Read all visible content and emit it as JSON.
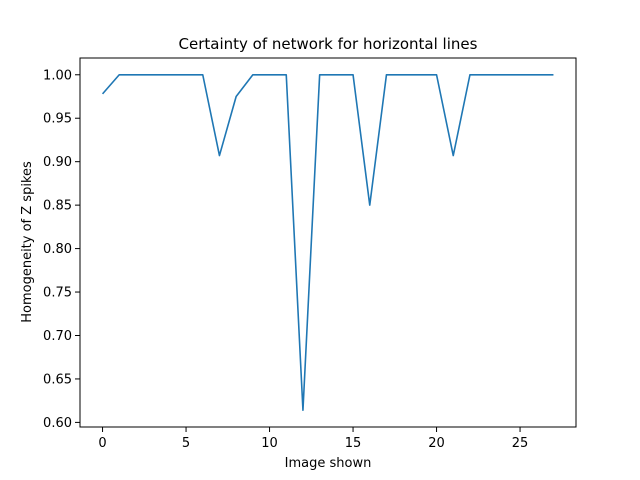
{
  "chart_data": {
    "type": "line",
    "title": "Certainty of network for horizontal lines",
    "xlabel": "Image shown",
    "ylabel": "Homogeneity of Z spikes",
    "xlim": [
      -1.35,
      28.35
    ],
    "ylim": [
      0.5947,
      1.0193
    ],
    "x_ticks": [
      0,
      5,
      10,
      15,
      20,
      25
    ],
    "x_tick_labels": [
      "0",
      "5",
      "10",
      "15",
      "20",
      "25"
    ],
    "y_ticks": [
      0.6,
      0.65,
      0.7,
      0.75,
      0.8,
      0.85,
      0.9,
      0.95,
      1.0
    ],
    "y_tick_labels": [
      "0.60",
      "0.65",
      "0.70",
      "0.75",
      "0.80",
      "0.85",
      "0.90",
      "0.95",
      "1.00"
    ],
    "grid": false,
    "legend": "none",
    "series": [
      {
        "color": "#1f77b4",
        "x": [
          0,
          1,
          2,
          3,
          4,
          5,
          6,
          7,
          8,
          9,
          10,
          11,
          12,
          13,
          14,
          15,
          16,
          17,
          18,
          19,
          20,
          21,
          22,
          23,
          24,
          25,
          26,
          27
        ],
        "values": [
          0.978,
          1.0,
          1.0,
          1.0,
          1.0,
          1.0,
          1.0,
          0.907,
          0.975,
          1.0,
          1.0,
          1.0,
          0.614,
          1.0,
          1.0,
          1.0,
          0.85,
          1.0,
          1.0,
          1.0,
          1.0,
          0.907,
          1.0,
          1.0,
          1.0,
          1.0,
          1.0,
          1.0
        ]
      }
    ]
  }
}
